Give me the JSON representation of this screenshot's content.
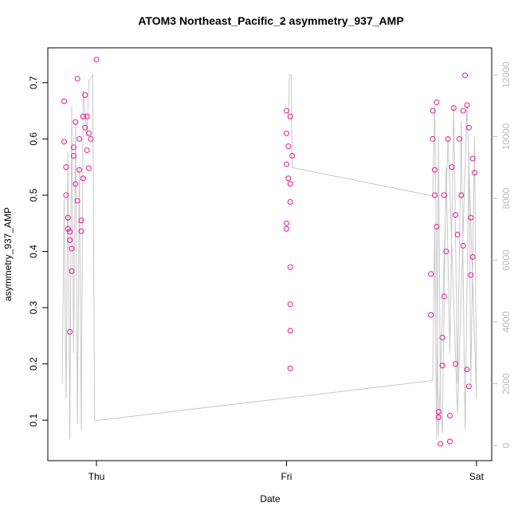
{
  "chart_data": {
    "type": "scatter",
    "title": "ATOM3 Northeast_Pacific_2 asymmetry_937_AMP",
    "xlabel": "Date",
    "ylabel": "asymmetry_937_AMP",
    "xlim": [
      -0.256,
      2.08
    ],
    "xticks": [
      {
        "value": 0,
        "label": "Thu"
      },
      {
        "value": 1,
        "label": "Fri"
      },
      {
        "value": 2,
        "label": "Sat"
      }
    ],
    "ylim": [
      0.028,
      0.762
    ],
    "yticks": [
      0.1,
      0.2,
      0.3,
      0.4,
      0.5,
      0.6,
      0.7
    ],
    "y2lim": [
      -490,
      12877
    ],
    "y2ticks": [
      0,
      2000,
      4000,
      6000,
      8000,
      10000,
      12000
    ],
    "points": {
      "color": "#e6178f",
      "x": [
        -0.17,
        -0.17,
        -0.16,
        -0.16,
        -0.15,
        -0.15,
        -0.14,
        -0.14,
        -0.13,
        -0.13,
        -0.14,
        -0.12,
        -0.12,
        -0.11,
        -0.11,
        -0.1,
        -0.1,
        -0.09,
        -0.09,
        -0.08,
        -0.08,
        -0.07,
        -0.07,
        -0.06,
        -0.06,
        -0.05,
        -0.05,
        -0.04,
        -0.04,
        -0.03,
        0.0,
        1.0,
        1.0,
        1.01,
        1.0,
        1.01,
        1.02,
        1.02,
        1.0,
        1.0,
        1.02,
        1.02,
        1.02,
        1.02,
        1.02,
        1.03,
        1.76,
        1.76,
        1.77,
        1.77,
        1.78,
        1.78,
        1.79,
        1.79,
        1.8,
        1.8,
        1.81,
        1.82,
        1.82,
        1.83,
        1.83,
        1.84,
        1.85,
        1.86,
        1.86,
        1.87,
        1.88,
        1.89,
        1.89,
        1.9,
        1.91,
        1.92,
        1.93,
        1.93,
        1.94,
        1.95,
        1.96,
        1.96,
        1.97,
        1.97,
        1.98,
        1.98,
        1.99,
        1.95
      ],
      "values": [
        0.667,
        0.595,
        0.55,
        0.5,
        0.46,
        0.44,
        0.435,
        0.42,
        0.405,
        0.365,
        0.257,
        0.585,
        0.57,
        0.63,
        0.52,
        0.707,
        0.49,
        0.6,
        0.545,
        0.455,
        0.436,
        0.64,
        0.53,
        0.678,
        0.62,
        0.64,
        0.58,
        0.61,
        0.548,
        0.6,
        0.741,
        0.65,
        0.61,
        0.587,
        0.555,
        0.53,
        0.52,
        0.488,
        0.45,
        0.44,
        0.372,
        0.306,
        0.259,
        0.192,
        0.64,
        0.57,
        0.36,
        0.287,
        0.65,
        0.6,
        0.545,
        0.5,
        0.665,
        0.444,
        0.115,
        0.105,
        0.058,
        0.197,
        0.247,
        0.32,
        0.5,
        0.4,
        0.6,
        0.062,
        0.108,
        0.55,
        0.655,
        0.465,
        0.2,
        0.43,
        0.6,
        0.5,
        0.65,
        0.41,
        0.713,
        0.19,
        0.62,
        0.16,
        0.46,
        0.358,
        0.39,
        0.565,
        0.54,
        0.66
      ]
    },
    "line": {
      "color": "#c8c8c8",
      "axis": "y2",
      "x": [
        -0.18,
        -0.17,
        -0.16,
        -0.15,
        -0.14,
        -0.13,
        -0.12,
        -0.11,
        -0.1,
        -0.09,
        -0.08,
        -0.07,
        -0.05,
        -0.04,
        -0.03,
        -0.02,
        -0.01,
        1.77,
        1.78,
        1.79,
        1.8,
        1.81,
        1.82,
        1.84,
        1.86,
        1.88,
        1.9,
        1.92,
        1.94,
        1.96,
        1.97,
        1.99,
        2.0,
        null,
        1.01,
        1.015,
        1.025,
        1.03,
        1.77,
        1.78,
        1.8,
        1.85,
        1.9,
        1.95,
        2.0
      ],
      "values": [
        2000,
        8000,
        1500,
        9500,
        200,
        11000,
        3000,
        10500,
        700,
        9000,
        500,
        11500,
        10000,
        11800,
        11900,
        12000,
        800,
        2100,
        7000,
        200,
        10000,
        1500,
        400,
        9000,
        3000,
        11000,
        2000,
        10500,
        500,
        9500,
        2000,
        10000,
        1800,
        null,
        10500,
        12000,
        12000,
        9000,
        8080,
        11000,
        300,
        10000,
        1000,
        11000,
        1500
      ]
    }
  }
}
